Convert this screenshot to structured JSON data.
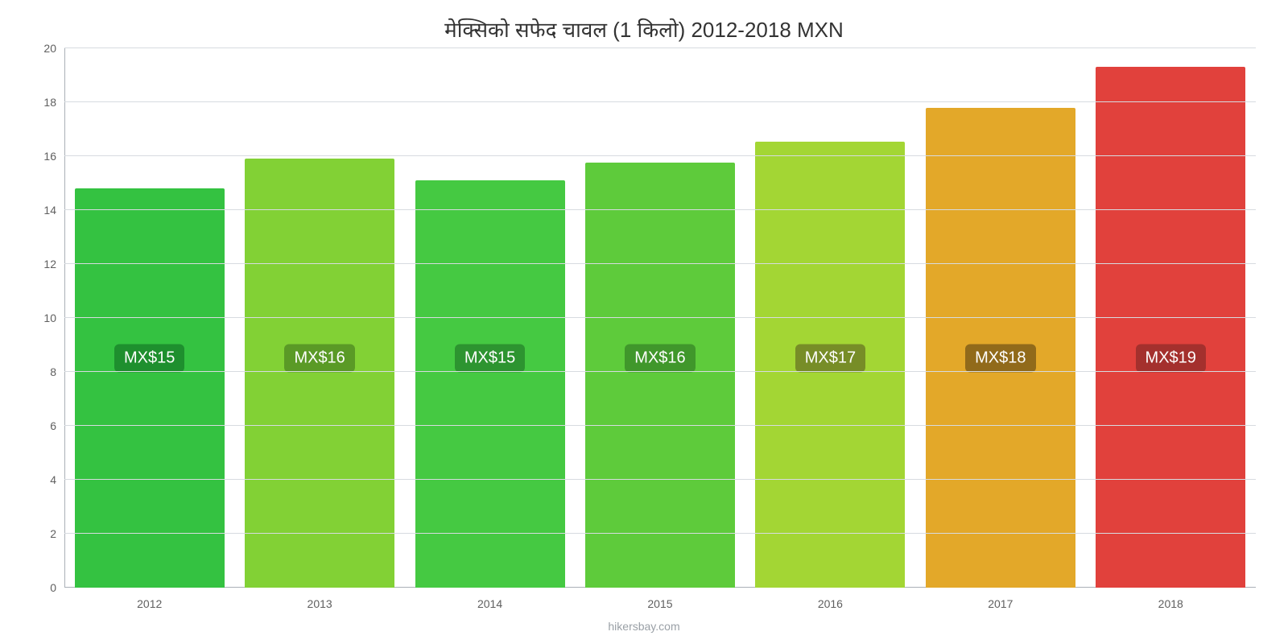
{
  "chart": {
    "type": "bar",
    "title": "मेक्सिको सफेद चावल (1 किलो) 2012-2018 MXN",
    "title_fontsize": 26,
    "title_color": "#333333",
    "background_color": "#ffffff",
    "ylim": [
      0,
      20
    ],
    "yticks": [
      0,
      2,
      4,
      6,
      8,
      10,
      12,
      14,
      16,
      18,
      20
    ],
    "grid_color": "#d7dbe0",
    "axis_color": "#aab0b7",
    "tick_label_color": "#5f5f5f",
    "tick_fontsize": 14,
    "bar_width_pct": 88,
    "bar_label_fontsize": 20,
    "bar_label_text_color": "#ffffff",
    "bar_label_y_value": 8.5,
    "categories": [
      "2012",
      "2013",
      "2014",
      "2015",
      "2016",
      "2017",
      "2018"
    ],
    "values": [
      14.8,
      15.9,
      15.1,
      15.75,
      16.55,
      17.8,
      19.3
    ],
    "bar_labels": [
      "MX$15",
      "MX$16",
      "MX$15",
      "MX$16",
      "MX$17",
      "MX$18",
      "MX$19"
    ],
    "bar_colors": [
      "#34c241",
      "#82d135",
      "#45c942",
      "#5ecb3b",
      "#a3d634",
      "#e3a829",
      "#e1413c"
    ],
    "bar_label_bg_colors": [
      "#1e8f2e",
      "#5a9a26",
      "#2d9430",
      "#40972b",
      "#778d27",
      "#916a1a",
      "#a4302d"
    ],
    "footer": "hikersbay.com",
    "footer_color": "#9aa0a6",
    "footer_fontsize": 14
  }
}
